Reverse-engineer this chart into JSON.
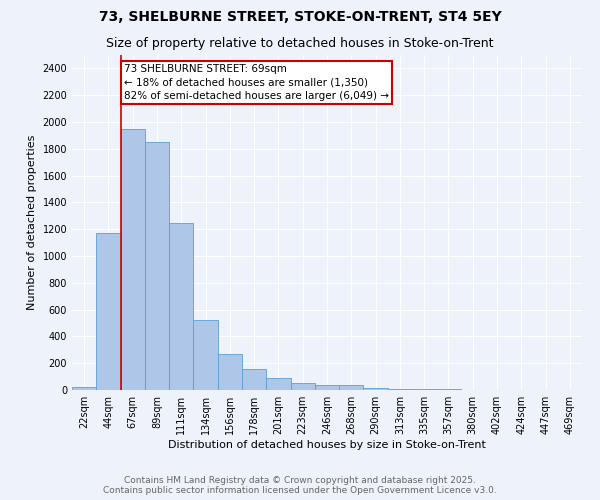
{
  "title_line1": "73, SHELBURNE STREET, STOKE-ON-TRENT, ST4 5EY",
  "title_line2": "Size of property relative to detached houses in Stoke-on-Trent",
  "xlabel": "Distribution of detached houses by size in Stoke-on-Trent",
  "ylabel": "Number of detached properties",
  "categories": [
    "22sqm",
    "44sqm",
    "67sqm",
    "89sqm",
    "111sqm",
    "134sqm",
    "156sqm",
    "178sqm",
    "201sqm",
    "223sqm",
    "246sqm",
    "268sqm",
    "290sqm",
    "313sqm",
    "335sqm",
    "357sqm",
    "380sqm",
    "402sqm",
    "424sqm",
    "447sqm",
    "469sqm"
  ],
  "values": [
    20,
    1175,
    1950,
    1850,
    1250,
    520,
    270,
    155,
    90,
    50,
    40,
    35,
    15,
    10,
    8,
    5,
    3,
    2,
    2,
    1,
    0
  ],
  "bar_color": "#aec6e8",
  "bar_edge_color": "#5a9fd4",
  "red_line_index": 2,
  "annotation_text": "73 SHELBURNE STREET: 69sqm\n← 18% of detached houses are smaller (1,350)\n82% of semi-detached houses are larger (6,049) →",
  "annotation_box_color": "#ffffff",
  "annotation_box_edge": "#cc0000",
  "ylim": [
    0,
    2500
  ],
  "yticks": [
    0,
    200,
    400,
    600,
    800,
    1000,
    1200,
    1400,
    1600,
    1800,
    2000,
    2200,
    2400
  ],
  "footer_line1": "Contains HM Land Registry data © Crown copyright and database right 2025.",
  "footer_line2": "Contains public sector information licensed under the Open Government Licence v3.0.",
  "background_color": "#eef2fb",
  "grid_color": "#ffffff",
  "title_fontsize": 10,
  "subtitle_fontsize": 9,
  "axis_label_fontsize": 8,
  "tick_fontsize": 7,
  "annotation_fontsize": 7.5,
  "footer_fontsize": 6.5
}
